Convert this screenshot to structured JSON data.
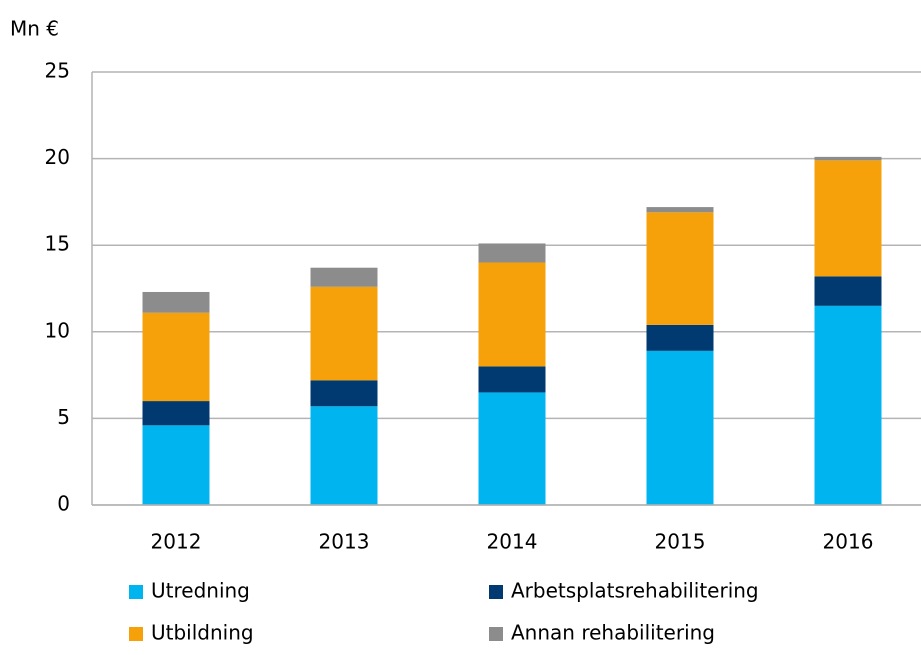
{
  "chart_data": {
    "type": "stacked_bar",
    "y_label": "Mn €",
    "categories": [
      "2012",
      "2013",
      "2014",
      "2015",
      "2016"
    ],
    "series": [
      {
        "name": "Utredning",
        "color": "#00b4f0",
        "values": [
          4.6,
          5.7,
          6.5,
          8.9,
          11.5
        ]
      },
      {
        "name": "Arbetsplatsrehabilitering",
        "color": "#003a70",
        "values": [
          1.4,
          1.5,
          1.5,
          1.5,
          1.7
        ]
      },
      {
        "name": "Utbildning",
        "color": "#f7a10a",
        "values": [
          5.1,
          5.4,
          6.0,
          6.5,
          6.7
        ]
      },
      {
        "name": "Annan rehabilitering",
        "color": "#8c8c8c",
        "values": [
          1.2,
          1.1,
          1.1,
          0.3,
          0.2
        ]
      }
    ],
    "ylim": [
      0,
      25
    ],
    "yticks": [
      0,
      5,
      10,
      15,
      20,
      25
    ],
    "grid": true
  }
}
